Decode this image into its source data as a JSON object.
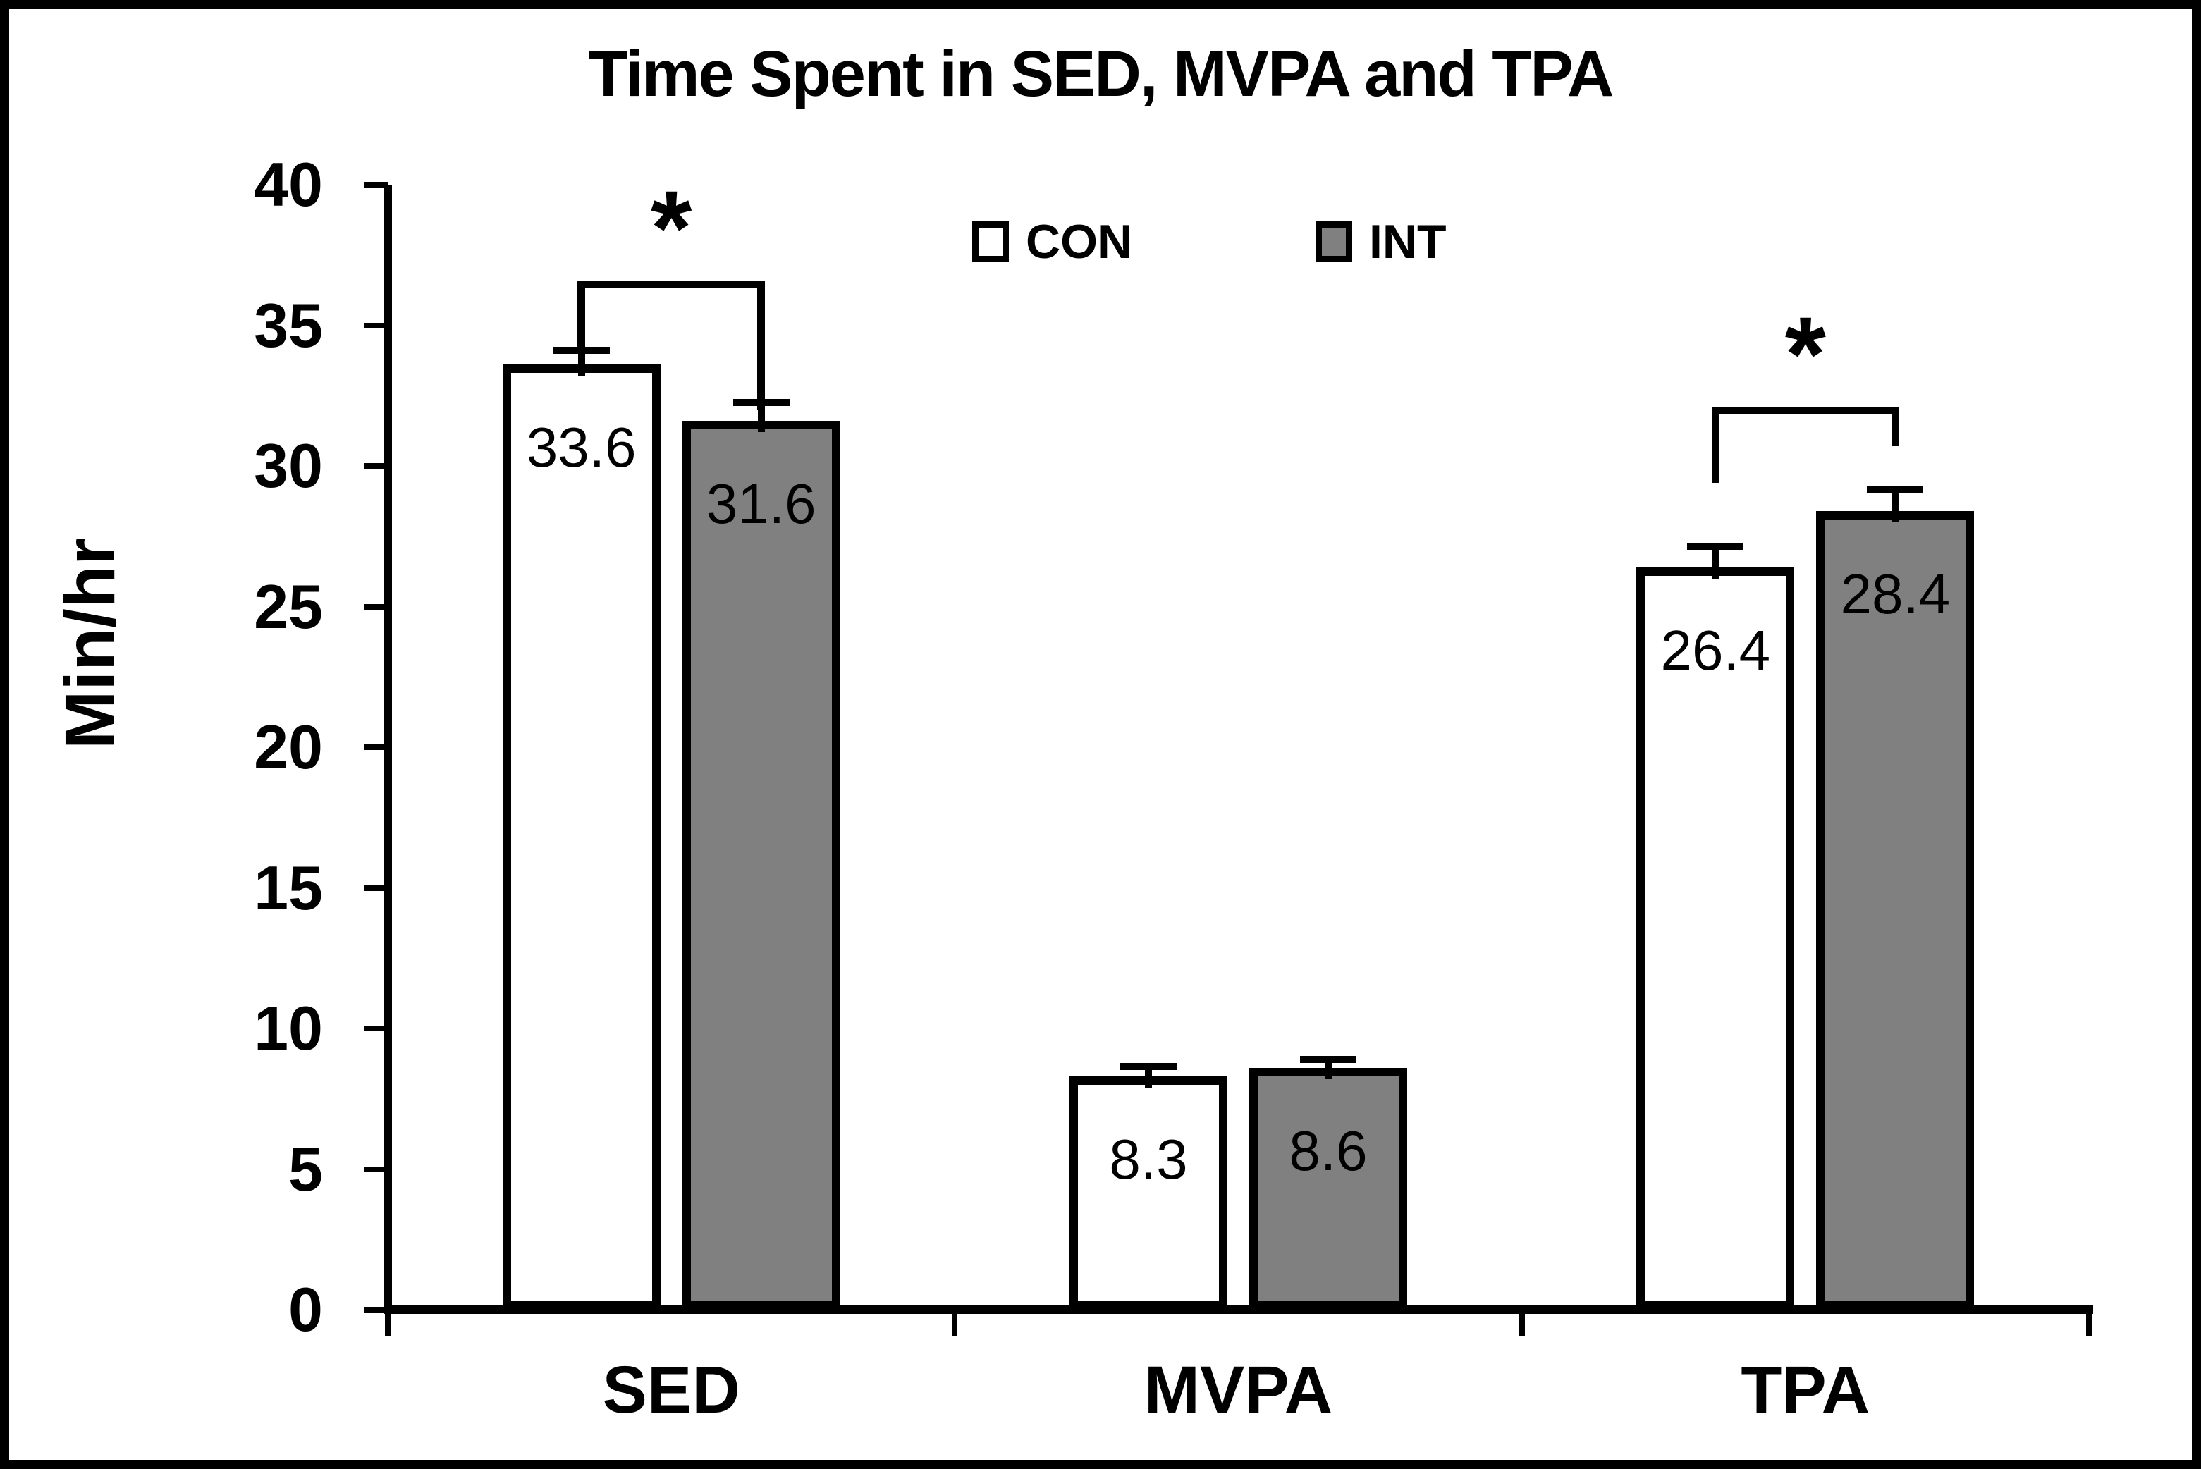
{
  "chart_data": {
    "type": "bar",
    "title": "Time Spent in SED, MVPA and TPA",
    "xlabel": "",
    "ylabel": "Min/hr",
    "ylim": [
      0,
      40
    ],
    "yticks": [
      0,
      5,
      10,
      15,
      20,
      25,
      30,
      35,
      40
    ],
    "grid": false,
    "legend_position": "top-center-inside",
    "categories": [
      "SED",
      "MVPA",
      "TPA"
    ],
    "series": [
      {
        "name": "CON",
        "fill": "#FFFFFF",
        "outline": "#000000",
        "values": [
          33.6,
          8.3,
          26.4
        ],
        "errors_upper": [
          0.5,
          0.35,
          0.75
        ]
      },
      {
        "name": "INT",
        "fill": "#808080",
        "outline": "#000000",
        "values": [
          31.6,
          8.6,
          28.4
        ],
        "errors_upper": [
          0.65,
          0.3,
          0.75
        ]
      }
    ],
    "value_label_decimals": 1,
    "significance_brackets": [
      {
        "category": "SED",
        "label": "*",
        "top_y": 36.6,
        "left_end_y": 34.2,
        "right_end_y": 32.0
      },
      {
        "category": "TPA",
        "label": "*",
        "top_y": 32.1,
        "left_end_y": 29.4,
        "right_end_y": 30.7
      }
    ],
    "axis_color": "#000000"
  }
}
